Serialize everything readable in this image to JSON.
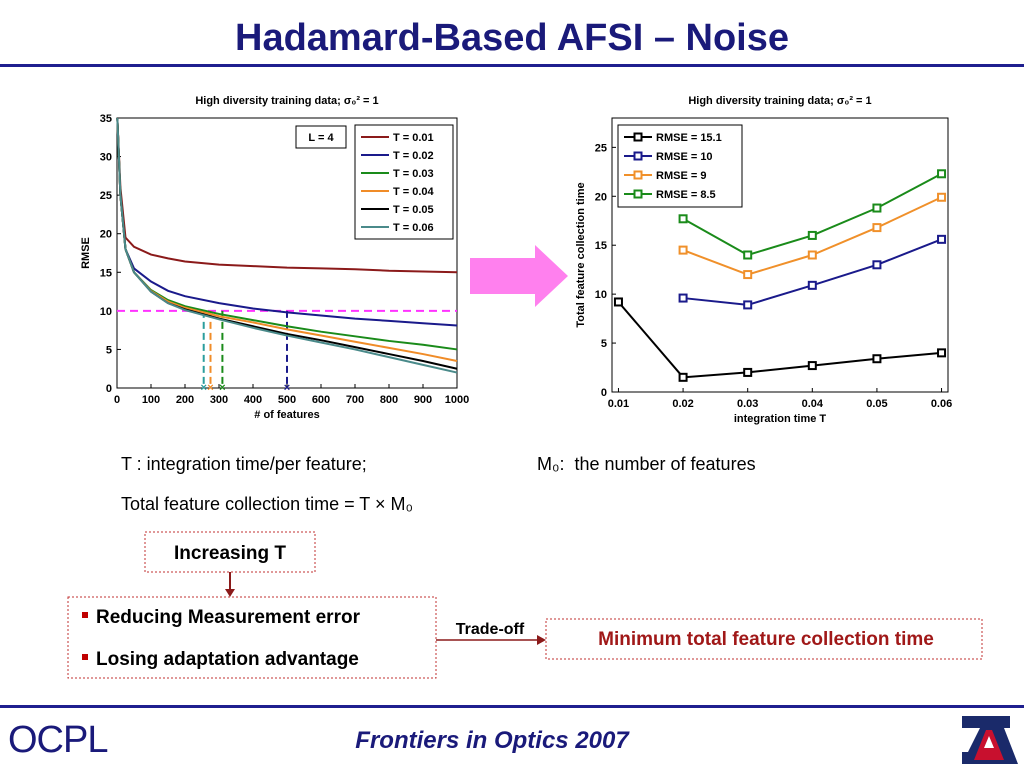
{
  "title": "Hadamard-Based AFSI – Noise",
  "chart_data": [
    {
      "type": "line",
      "title": "High diversity training data; σ₀² = 1",
      "xlabel": "# of features",
      "ylabel": "RMSE",
      "x": [
        1,
        10,
        25,
        50,
        100,
        150,
        200,
        300,
        400,
        500,
        600,
        700,
        800,
        900,
        1000
      ],
      "series": [
        {
          "name": "T = 0.01",
          "color": "#8b1a1a",
          "values": [
            35,
            26,
            19.5,
            18.3,
            17.3,
            16.8,
            16.4,
            16,
            15.8,
            15.6,
            15.5,
            15.4,
            15.2,
            15.1,
            15
          ]
        },
        {
          "name": "T = 0.02",
          "color": "#1a1a8b",
          "values": [
            35,
            25,
            18,
            15.5,
            13.8,
            12.6,
            11.9,
            11,
            10.3,
            9.8,
            9.4,
            9,
            8.7,
            8.4,
            8.1
          ]
        },
        {
          "name": "T = 0.03",
          "color": "#1a8b1a",
          "values": [
            35,
            25,
            18,
            15,
            12.7,
            11.4,
            10.6,
            9.6,
            8.8,
            8,
            7.3,
            6.7,
            6.1,
            5.6,
            5
          ]
        },
        {
          "name": "T = 0.04",
          "color": "#f08c28",
          "values": [
            35,
            25,
            18,
            15,
            12.6,
            11.2,
            10.4,
            9.3,
            8.5,
            7.6,
            6.8,
            6,
            5.2,
            4.4,
            3.5
          ]
        },
        {
          "name": "T = 0.05",
          "color": "#000000",
          "values": [
            35,
            25,
            18,
            15,
            12.5,
            11,
            10.2,
            9,
            8,
            7,
            6.2,
            5.3,
            4.4,
            3.5,
            2.5
          ]
        },
        {
          "name": "T = 0.06",
          "color": "#4a8a8a",
          "values": [
            35,
            25,
            18,
            15,
            12.5,
            11,
            10.1,
            8.9,
            7.8,
            6.8,
            5.9,
            5,
            4,
            3,
            2
          ]
        }
      ],
      "xlim": [
        0,
        1000
      ],
      "xticks": [
        0,
        100,
        200,
        300,
        400,
        500,
        600,
        700,
        800,
        900,
        1000
      ],
      "ylim": [
        0,
        35
      ],
      "yticks": [
        0,
        5,
        10,
        15,
        20,
        25,
        30,
        35
      ],
      "legend": "upper right",
      "markers": false,
      "annotation": "L = 4",
      "threshold": 10,
      "threshold_color": "#ff33ff",
      "crossings": [
        {
          "x": 255,
          "color": "#2a9d9d"
        },
        {
          "x": 275,
          "color": "#f08c28"
        },
        {
          "x": 310,
          "color": "#1a8b1a"
        },
        {
          "x": 500,
          "color": "#1a1a8b"
        }
      ]
    },
    {
      "type": "line",
      "title": "High diversity training data; σ₀² = 1",
      "xlabel": "integration time T",
      "ylabel": "Total feature collection time",
      "x": [
        0.01,
        0.02,
        0.03,
        0.04,
        0.05,
        0.06
      ],
      "series": [
        {
          "name": "RMSE = 15.1",
          "color": "#000000",
          "values": [
            9.2,
            1.5,
            2,
            2.7,
            3.4,
            4
          ]
        },
        {
          "name": "RMSE = 10",
          "color": "#1a1a8b",
          "values": [
            null,
            9.6,
            8.9,
            10.9,
            13,
            15.6
          ]
        },
        {
          "name": "RMSE = 9",
          "color": "#f0902a",
          "values": [
            null,
            14.5,
            12,
            14,
            16.8,
            19.9
          ]
        },
        {
          "name": "RMSE = 8.5",
          "color": "#1a8b1a",
          "values": [
            null,
            17.7,
            14,
            16,
            18.8,
            22.3
          ]
        }
      ],
      "xlim": [
        0.009,
        0.061
      ],
      "xticks": [
        0.01,
        0.02,
        0.03,
        0.04,
        0.05,
        0.06
      ],
      "ylim": [
        0,
        28
      ],
      "yticks": [
        0,
        5,
        10,
        15,
        20,
        25
      ],
      "legend": "upper left",
      "markers": true
    }
  ],
  "notes": {
    "integration": "T : integration time/per feature;",
    "features": "M₀:  the number of features",
    "total": "Total feature collection time = T × M₀"
  },
  "flow": {
    "cause": "Increasing T",
    "effects": [
      "Reducing Measurement error",
      "Losing adaptation advantage"
    ],
    "link": "Trade-off",
    "result": "Minimum total feature collection time"
  },
  "footer": {
    "logo": "OCPL",
    "conference": "Frontiers in Optics 2007"
  }
}
